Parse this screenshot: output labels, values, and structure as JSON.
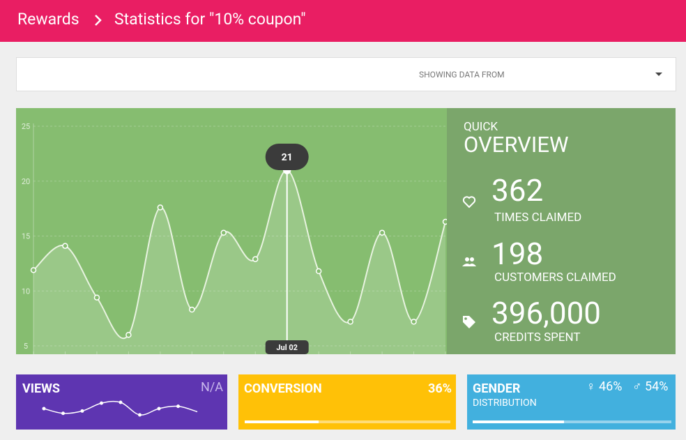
{
  "header": {
    "breadcrumb": "Rewards",
    "title": "Statistics for \"10% coupon\""
  },
  "filter": {
    "label": "SHOWING DATA FROM"
  },
  "chart_data": {
    "type": "line",
    "categories": [
      null,
      null,
      null,
      null,
      null,
      null,
      null,
      null,
      "Jul 02",
      null,
      null,
      null,
      null,
      null
    ],
    "values": [
      11.9,
      14.1,
      9.4,
      6.0,
      17.6,
      8.3,
      15.3,
      12.9,
      21,
      11.8,
      7.2,
      15.3,
      7.2,
      16.3
    ],
    "color": "#e8f3e0",
    "ylim": [
      4.24,
      26.65
    ],
    "yticks": [
      5,
      10,
      15,
      20,
      25
    ],
    "grid": true,
    "highlight": 8
  },
  "overview": {
    "kicker": "QUICK",
    "title": "OVERVIEW",
    "stats": [
      {
        "value": "362",
        "label": "TIMES CLAIMED"
      },
      {
        "value": "198",
        "label": "CUSTOMERS CLAIMED"
      },
      {
        "value": "396,000",
        "label": "CREDITS SPENT"
      }
    ]
  },
  "cards": {
    "views": {
      "title": "VIEWS",
      "value": "N/A",
      "sparkline": [
        13,
        7,
        10,
        20,
        21,
        5,
        13,
        16,
        9
      ]
    },
    "conversion": {
      "title": "CONVERSION",
      "value": 36,
      "value_label": "36%"
    },
    "gender": {
      "title": "GENDER",
      "subtitle": "DISTRIBUTION",
      "female": 46,
      "female_label": "♀ 46%",
      "male": 54,
      "male_label": "♂ 54%"
    }
  }
}
